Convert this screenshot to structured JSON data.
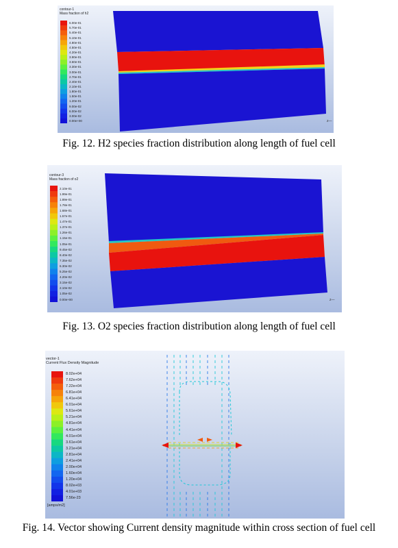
{
  "figures": [
    {
      "legend_title_1": "contour-1",
      "legend_title_2": "Mass fraction of h2",
      "legend_labels": [
        "6.00e-01",
        "5.70e-01",
        "5.40e-01",
        "5.10e-01",
        "4.80e-01",
        "4.50e-01",
        "4.20e-01",
        "3.90e-01",
        "3.60e-01",
        "3.30e-01",
        "3.00e-01",
        "2.70e-01",
        "2.40e-01",
        "2.10e-01",
        "1.80e-01",
        "1.50e-01",
        "1.20e-01",
        "9.00e-02",
        "6.00e-02",
        "3.00e-02",
        "0.00e+00"
      ],
      "caption": "Fig. 12. H2 species fraction distribution along length of fuel cell",
      "axis_label": "z"
    },
    {
      "legend_title_1": "contour-3",
      "legend_title_2": "Mass fraction of o2",
      "legend_labels": [
        "2.10e-01",
        "1.99e-01",
        "1.89e-01",
        "1.78e-01",
        "1.68e-01",
        "1.57e-01",
        "1.47e-01",
        "1.37e-01",
        "1.26e-01",
        "1.15e-01",
        "1.05e-01",
        "9.45e-02",
        "8.40e-02",
        "7.35e-02",
        "6.30e-02",
        "5.25e-02",
        "4.20e-02",
        "3.15e-02",
        "2.10e-02",
        "1.05e-02",
        "0.00e+00"
      ],
      "caption": "Fig. 13. O2 species fraction distribution along length of fuel cell",
      "axis_label": "z"
    },
    {
      "legend_title_1": "vector-1",
      "legend_title_2": "Current Flux Density Magnitude",
      "legend_labels": [
        "8.02e+04",
        "7.62e+04",
        "7.22e+04",
        "6.81e+04",
        "6.41e+04",
        "6.01e+04",
        "5.61e+04",
        "5.21e+04",
        "4.81e+04",
        "4.41e+04",
        "4.01e+04",
        "3.61e+04",
        "3.21e+04",
        "2.81e+04",
        "2.41e+04",
        "2.00e+04",
        "1.60e+04",
        "1.20e+04",
        "8.02e+03",
        "4.01e+03",
        "7.56e-23"
      ],
      "units": "[amps/m2]",
      "caption": "Fig. 14. Vector showing Current density magnitude within cross section of fuel cell"
    }
  ],
  "colors": {
    "scale": [
      "#e8140e",
      "#ef3a0e",
      "#f45e0c",
      "#f6820a",
      "#f6a50a",
      "#f0c80c",
      "#dde812",
      "#b8f019",
      "#8cf028",
      "#5cf040",
      "#32e85e",
      "#17d880",
      "#0cc8a4",
      "#0cb6c6",
      "#0e9ee0",
      "#1082ec",
      "#1266f0",
      "#124cee",
      "#1234ea",
      "#1220e2",
      "#1212d8"
    ],
    "domain_blue": "#1a14d2",
    "domain_red": "#e8130e"
  }
}
